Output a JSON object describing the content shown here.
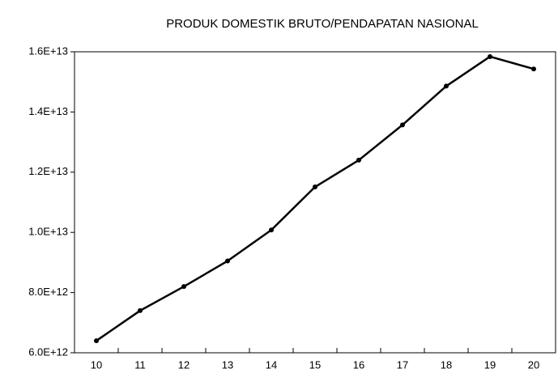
{
  "chart_data": {
    "type": "line",
    "title": "PRODUK DOMESTIK BRUTO/PENDAPATAN NASIONAL",
    "categories": [
      "10",
      "11",
      "12",
      "13",
      "14",
      "15",
      "16",
      "17",
      "18",
      "19",
      "20"
    ],
    "values": [
      6400000000000.0,
      7400000000000.0,
      8200000000000.0,
      9050000000000.0,
      10080000000000.0,
      11510000000000.0,
      12400000000000.0,
      13570000000000.0,
      14860000000000.0,
      15840000000000.0,
      15430000000000.0
    ],
    "color": "#000000",
    "ylim": [
      6000000000000.0,
      16000000000000.0
    ],
    "yticks": [
      {
        "value": 6000000000000.0,
        "label": "6.0E+12"
      },
      {
        "value": 8000000000000.0,
        "label": "8.0E+12"
      },
      {
        "value": 10000000000000.0,
        "label": "1.0E+13"
      },
      {
        "value": 12000000000000.0,
        "label": "1.2E+13"
      },
      {
        "value": 14000000000000.0,
        "label": "1.4E+13"
      },
      {
        "value": 16000000000000.0,
        "label": "1.6E+13"
      }
    ],
    "grid": false
  }
}
